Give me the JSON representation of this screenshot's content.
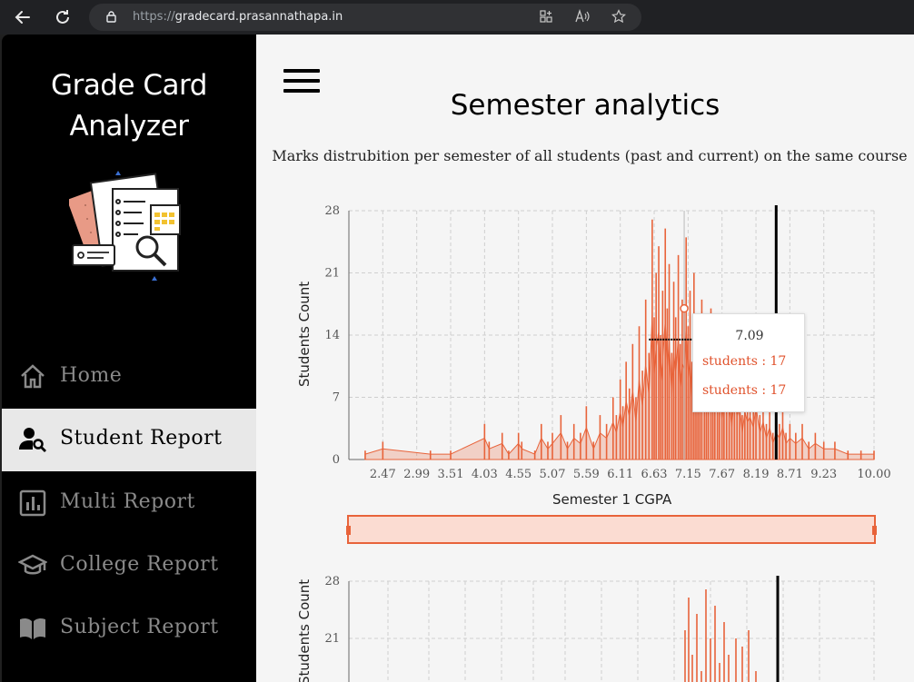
{
  "browser": {
    "url_scheme": "https://",
    "url_host": "gradecard.prasannathapa.in",
    "back_icon": "arrow-left-icon",
    "refresh_icon": "refresh-icon"
  },
  "sidebar": {
    "app_title_line1": "Grade Card",
    "app_title_line2": "Analyzer",
    "items": [
      {
        "label": "Home",
        "icon": "home-icon",
        "active": false
      },
      {
        "label": "Student Report",
        "icon": "user-search-icon",
        "active": true
      },
      {
        "label": "Multi Report",
        "icon": "bar-chart-icon",
        "active": false
      },
      {
        "label": "College Report",
        "icon": "graduation-cap-icon",
        "active": false
      },
      {
        "label": "Subject Report",
        "icon": "book-icon",
        "active": false
      }
    ]
  },
  "main": {
    "title": "Semester analytics",
    "subtitle": "Marks distrubition per semester of all students (past and current) on the same course"
  },
  "tooltip": {
    "header": "7.09",
    "rows": [
      "students : 17",
      "students : 17"
    ]
  },
  "colors": {
    "accent": "#e8633a",
    "sidebar_bg": "#000000",
    "active_bg": "#e8e8e8",
    "page_bg": "#f5f5f5"
  },
  "chart_data": [
    {
      "type": "bar",
      "xlabel": "Semester 1 CGPA",
      "ylabel": "Students Count",
      "ylim": [
        0,
        28
      ],
      "yticks": [
        "0",
        "7",
        "14",
        "21",
        "28"
      ],
      "xticks": [
        "2.47",
        "2.99",
        "3.51",
        "4.03",
        "4.55",
        "5.07",
        "5.59",
        "6.11",
        "6.63",
        "7.15",
        "7.67",
        "8.19",
        "8.71",
        "9.23",
        "10.00"
      ],
      "xlim": [
        1.95,
        10.0
      ],
      "marker_x": 8.5,
      "series": [
        {
          "x": [
            2.2,
            2.47,
            3.2,
            3.51,
            4.03,
            4.1,
            4.3,
            4.4,
            4.55,
            4.6,
            4.8,
            4.9,
            5.0,
            5.07,
            5.2,
            5.3,
            5.4,
            5.5,
            5.59,
            5.7,
            5.8,
            5.9,
            6.0,
            6.05,
            6.11,
            6.15,
            6.2,
            6.25,
            6.3,
            6.35,
            6.4,
            6.45,
            6.5,
            6.55,
            6.6,
            6.63,
            6.66,
            6.7,
            6.73,
            6.76,
            6.8,
            6.83,
            6.86,
            6.9,
            6.93,
            6.96,
            7.0,
            7.03,
            7.06,
            7.09,
            7.12,
            7.15,
            7.18,
            7.21,
            7.24,
            7.27,
            7.3,
            7.33,
            7.36,
            7.4,
            7.43,
            7.46,
            7.5,
            7.53,
            7.56,
            7.6,
            7.63,
            7.67,
            7.7,
            7.74,
            7.78,
            7.82,
            7.86,
            7.9,
            7.94,
            7.98,
            8.02,
            8.06,
            8.1,
            8.15,
            8.19,
            8.25,
            8.3,
            8.35,
            8.4,
            8.45,
            8.5,
            8.55,
            8.6,
            8.65,
            8.71,
            8.8,
            8.9,
            9.0,
            9.1,
            9.23,
            9.4,
            9.6,
            9.8,
            10.0
          ],
          "values": [
            1,
            2,
            1,
            1,
            4,
            2,
            3,
            1,
            3,
            2,
            1,
            4,
            2,
            3,
            5,
            2,
            4,
            3,
            6,
            2,
            5,
            4,
            7,
            5,
            9,
            6,
            11,
            8,
            13,
            7,
            15,
            10,
            18,
            12,
            27,
            16,
            21,
            24,
            14,
            19,
            26,
            17,
            22,
            12,
            20,
            16,
            23,
            13,
            18,
            17,
            25,
            15,
            19,
            11,
            21,
            14,
            16,
            9,
            18,
            12,
            15,
            8,
            17,
            10,
            13,
            9,
            14,
            7,
            12,
            10,
            11,
            6,
            13,
            8,
            10,
            5,
            9,
            7,
            8,
            6,
            10,
            5,
            7,
            4,
            6,
            3,
            5,
            4,
            6,
            3,
            4,
            3,
            4,
            2,
            3,
            2,
            2,
            1,
            1,
            1
          ]
        }
      ]
    },
    {
      "type": "bar",
      "xlabel": "",
      "ylabel": "Students Count",
      "ylim": [
        0,
        28
      ],
      "yticks": [
        "21",
        "28"
      ],
      "marker_x": 8.5
    }
  ]
}
